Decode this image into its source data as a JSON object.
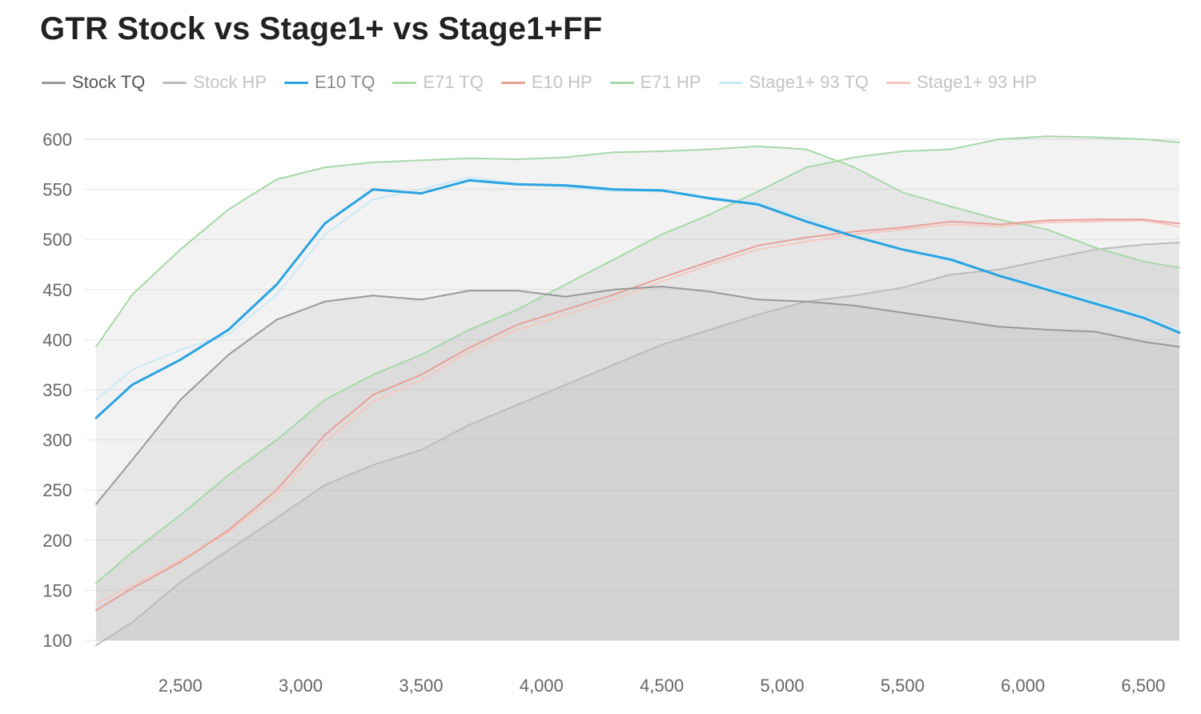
{
  "chart_data": {
    "type": "line",
    "title": "GTR Stock vs Stage1+ vs Stage1+FF",
    "xlabel": "",
    "ylabel": "",
    "xlim": [
      2100,
      6650
    ],
    "ylim": [
      100,
      600
    ],
    "x_ticks": [
      2500,
      3000,
      3500,
      4000,
      4500,
      5000,
      5500,
      6000,
      6500
    ],
    "x_tick_labels": [
      "2,500",
      "3,000",
      "3,500",
      "4,000",
      "4,500",
      "5,000",
      "5,500",
      "6,000",
      "6,500"
    ],
    "y_ticks": [
      100,
      150,
      200,
      250,
      300,
      350,
      400,
      450,
      500,
      550,
      600
    ],
    "y_tick_labels": [
      "100",
      "150",
      "200",
      "250",
      "300",
      "350",
      "400",
      "450",
      "500",
      "550",
      "600"
    ],
    "grid": true,
    "legend_position": "top-left",
    "x": [
      2150,
      2300,
      2500,
      2700,
      2900,
      3100,
      3300,
      3500,
      3700,
      3900,
      4100,
      4300,
      4500,
      4700,
      4900,
      5100,
      5300,
      5500,
      5700,
      5900,
      6100,
      6300,
      6500,
      6650
    ],
    "series": [
      {
        "name": "Stock TQ",
        "color": "#999999",
        "shaded": true,
        "values": [
          236,
          280,
          340,
          385,
          420,
          438,
          444,
          440,
          449,
          449,
          443,
          450,
          453,
          448,
          440,
          438,
          434,
          427,
          420,
          413,
          410,
          408,
          398,
          393
        ]
      },
      {
        "name": "Stock HP",
        "color": "#bbbbbb",
        "shaded": true,
        "values": [
          95,
          118,
          158,
          190,
          222,
          255,
          275,
          290,
          315,
          335,
          355,
          375,
          395,
          410,
          425,
          438,
          444,
          452,
          465,
          470,
          480,
          490,
          495,
          497
        ]
      },
      {
        "name": "E10 TQ",
        "color": "#2ba3e0",
        "shaded": false,
        "values": [
          322,
          355,
          380,
          410,
          455,
          516,
          550,
          546,
          559,
          555,
          554,
          550,
          549,
          541,
          535,
          518,
          503,
          490,
          480,
          464,
          450,
          436,
          422,
          407
        ]
      },
      {
        "name": "E71 TQ",
        "color": "#a8d8a8",
        "shaded": true,
        "values": [
          393,
          445,
          490,
          530,
          560,
          572,
          577,
          579,
          581,
          580,
          582,
          587,
          588,
          590,
          593,
          590,
          572,
          547,
          533,
          520,
          510,
          492,
          478,
          472
        ]
      },
      {
        "name": "E10 HP",
        "color": "#e8a098",
        "shaded": false,
        "values": [
          130,
          152,
          178,
          210,
          250,
          305,
          345,
          365,
          392,
          415,
          430,
          445,
          462,
          478,
          494,
          502,
          508,
          512,
          518,
          515,
          519,
          520,
          520,
          516
        ]
      },
      {
        "name": "E71 HP",
        "color": "#a8d8a8",
        "shaded": true,
        "values": [
          157,
          188,
          225,
          265,
          300,
          340,
          365,
          385,
          410,
          430,
          455,
          480,
          505,
          525,
          548,
          572,
          582,
          588,
          590,
          600,
          603,
          602,
          600,
          597
        ]
      },
      {
        "name": "Stage1+ 93 TQ",
        "color": "#cce9f5",
        "shaded": false,
        "values": [
          340,
          370,
          390,
          405,
          445,
          505,
          540,
          550,
          562,
          556,
          552,
          548,
          548,
          542,
          537,
          522,
          505,
          490,
          478,
          465,
          452,
          438,
          424,
          410
        ]
      },
      {
        "name": "Stage1+ 93 HP",
        "color": "#f5c8c0",
        "shaded": false,
        "values": [
          137,
          155,
          180,
          208,
          245,
          298,
          338,
          360,
          388,
          410,
          425,
          440,
          458,
          475,
          490,
          498,
          505,
          510,
          515,
          513,
          517,
          518,
          519,
          513
        ]
      }
    ]
  }
}
